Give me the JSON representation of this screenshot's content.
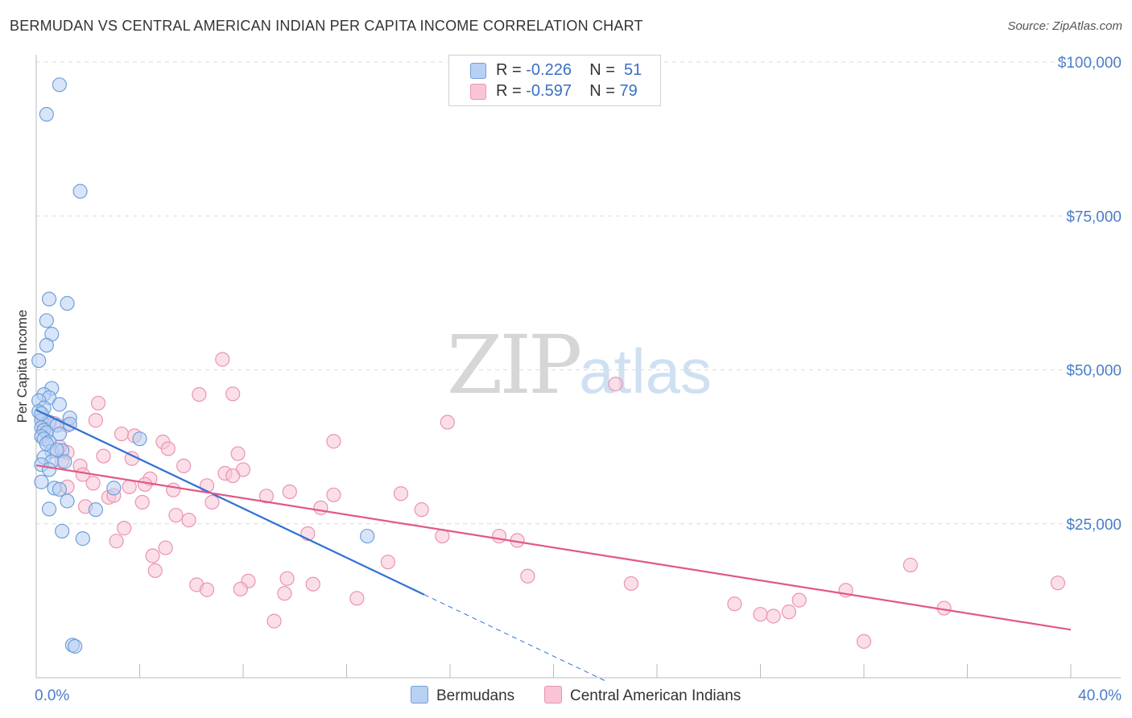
{
  "title": "BERMUDAN VS CENTRAL AMERICAN INDIAN PER CAPITA INCOME CORRELATION CHART",
  "source": "Source: ZipAtlas.com",
  "watermark": {
    "zip": "ZIP",
    "atlas": "atlas"
  },
  "legend": {
    "rows": [
      {
        "r_label": "R = ",
        "r_value": "-0.226",
        "n_label": "N = ",
        "n_value": "51"
      },
      {
        "r_label": "R = ",
        "r_value": "-0.597",
        "n_label": "N = ",
        "n_value": "79"
      }
    ]
  },
  "bottom_legend": {
    "series1": "Bermudans",
    "series2": "Central American Indians"
  },
  "colors": {
    "blue_fill": "#b8d0f2",
    "blue_stroke": "#6fa0dc",
    "blue_line": "#2f72d4",
    "pink_fill": "#f8c4d6",
    "pink_stroke": "#ea93b2",
    "pink_line": "#e0588a",
    "grid": "#dcdcdc",
    "axis_text": "#4a7cc9"
  },
  "chart_data": {
    "type": "scatter",
    "title": "BERMUDAN VS CENTRAL AMERICAN INDIAN PER CAPITA INCOME CORRELATION CHART",
    "xlabel": "",
    "ylabel": "Per Capita Income",
    "xlim": [
      0,
      40
    ],
    "ylim": [
      0,
      100000
    ],
    "x_tick_labels": [
      "0.0%",
      "40.0%"
    ],
    "y_ticks": [
      25000,
      50000,
      75000,
      100000
    ],
    "y_tick_labels": [
      "$25,000",
      "$50,000",
      "$75,000",
      "$100,000"
    ],
    "grid": true,
    "series": [
      {
        "name": "Bermudans",
        "r": -0.226,
        "n": 51,
        "trend": {
          "x0": 0,
          "y0": 43500,
          "x1": 15,
          "y1": 13500,
          "dash_to_x": 22,
          "dash_to_y": -500
        },
        "points": [
          [
            0.9,
            96300
          ],
          [
            0.4,
            91500
          ],
          [
            1.7,
            79000
          ],
          [
            0.5,
            61500
          ],
          [
            1.2,
            60800
          ],
          [
            0.4,
            58000
          ],
          [
            0.6,
            55800
          ],
          [
            0.4,
            54000
          ],
          [
            0.1,
            51500
          ],
          [
            0.6,
            47000
          ],
          [
            0.3,
            46000
          ],
          [
            0.5,
            45500
          ],
          [
            0.1,
            45000
          ],
          [
            0.9,
            44400
          ],
          [
            0.3,
            43800
          ],
          [
            0.1,
            43200
          ],
          [
            1.3,
            42200
          ],
          [
            0.2,
            41800
          ],
          [
            0.5,
            41500
          ],
          [
            1.3,
            41200
          ],
          [
            0.8,
            41000
          ],
          [
            0.2,
            40600
          ],
          [
            0.3,
            40200
          ],
          [
            0.4,
            39800
          ],
          [
            0.9,
            39600
          ],
          [
            0.2,
            39200
          ],
          [
            0.3,
            38800
          ],
          [
            4.0,
            38800
          ],
          [
            0.5,
            38300
          ],
          [
            0.6,
            36800
          ],
          [
            0.3,
            35800
          ],
          [
            1.0,
            36900
          ],
          [
            0.6,
            35100
          ],
          [
            1.1,
            35100
          ],
          [
            0.2,
            34600
          ],
          [
            0.5,
            33800
          ],
          [
            0.2,
            31800
          ],
          [
            0.7,
            30800
          ],
          [
            0.9,
            30600
          ],
          [
            3.0,
            30800
          ],
          [
            1.2,
            28700
          ],
          [
            0.5,
            27400
          ],
          [
            2.3,
            27300
          ],
          [
            1.0,
            23800
          ],
          [
            1.8,
            22600
          ],
          [
            12.8,
            23000
          ],
          [
            1.4,
            5300
          ],
          [
            1.5,
            5100
          ],
          [
            0.4,
            38000
          ],
          [
            0.8,
            37000
          ],
          [
            0.2,
            42900
          ]
        ]
      },
      {
        "name": "Central American Indians",
        "r": -0.597,
        "n": 79,
        "trend": {
          "x0": 0,
          "y0": 34500,
          "x1": 40,
          "y1": 7800
        },
        "points": [
          [
            7.2,
            51700
          ],
          [
            22.4,
            47700
          ],
          [
            6.3,
            46000
          ],
          [
            7.6,
            46100
          ],
          [
            2.4,
            44600
          ],
          [
            0.3,
            42000
          ],
          [
            0.7,
            41300
          ],
          [
            1.2,
            41000
          ],
          [
            2.3,
            41800
          ],
          [
            15.9,
            41500
          ],
          [
            3.3,
            39600
          ],
          [
            3.8,
            39300
          ],
          [
            4.9,
            38300
          ],
          [
            5.1,
            37200
          ],
          [
            11.5,
            38400
          ],
          [
            1.2,
            36600
          ],
          [
            0.9,
            37500
          ],
          [
            2.6,
            36000
          ],
          [
            7.8,
            36400
          ],
          [
            3.7,
            35600
          ],
          [
            1.7,
            34400
          ],
          [
            5.7,
            34400
          ],
          [
            8.0,
            33800
          ],
          [
            7.3,
            33200
          ],
          [
            7.6,
            32800
          ],
          [
            1.8,
            33000
          ],
          [
            4.4,
            32300
          ],
          [
            1.2,
            31000
          ],
          [
            2.2,
            31600
          ],
          [
            3.6,
            31000
          ],
          [
            4.2,
            31400
          ],
          [
            5.3,
            30500
          ],
          [
            6.6,
            31200
          ],
          [
            9.8,
            30200
          ],
          [
            8.9,
            29500
          ],
          [
            11.5,
            29700
          ],
          [
            14.1,
            29900
          ],
          [
            2.8,
            29300
          ],
          [
            3.0,
            29600
          ],
          [
            1.9,
            27800
          ],
          [
            4.1,
            28500
          ],
          [
            6.8,
            28500
          ],
          [
            11.0,
            27600
          ],
          [
            14.9,
            27300
          ],
          [
            5.4,
            26400
          ],
          [
            5.9,
            25600
          ],
          [
            3.4,
            24300
          ],
          [
            15.7,
            23000
          ],
          [
            17.9,
            23000
          ],
          [
            18.6,
            22300
          ],
          [
            10.5,
            23400
          ],
          [
            3.1,
            22200
          ],
          [
            4.5,
            19800
          ],
          [
            5.0,
            21100
          ],
          [
            4.6,
            17400
          ],
          [
            13.6,
            18800
          ],
          [
            19.0,
            16500
          ],
          [
            6.2,
            15100
          ],
          [
            6.6,
            14300
          ],
          [
            8.2,
            15700
          ],
          [
            7.9,
            14400
          ],
          [
            9.7,
            16100
          ],
          [
            9.6,
            13700
          ],
          [
            10.7,
            15200
          ],
          [
            12.4,
            12900
          ],
          [
            23.0,
            15300
          ],
          [
            27.0,
            12000
          ],
          [
            28.0,
            10300
          ],
          [
            28.5,
            10000
          ],
          [
            29.5,
            12600
          ],
          [
            29.1,
            10700
          ],
          [
            31.3,
            14200
          ],
          [
            33.8,
            18300
          ],
          [
            35.1,
            11300
          ],
          [
            39.5,
            15400
          ],
          [
            9.2,
            9200
          ],
          [
            32.0,
            5900
          ],
          [
            0.3,
            40500
          ],
          [
            1.0,
            35200
          ]
        ]
      }
    ]
  }
}
